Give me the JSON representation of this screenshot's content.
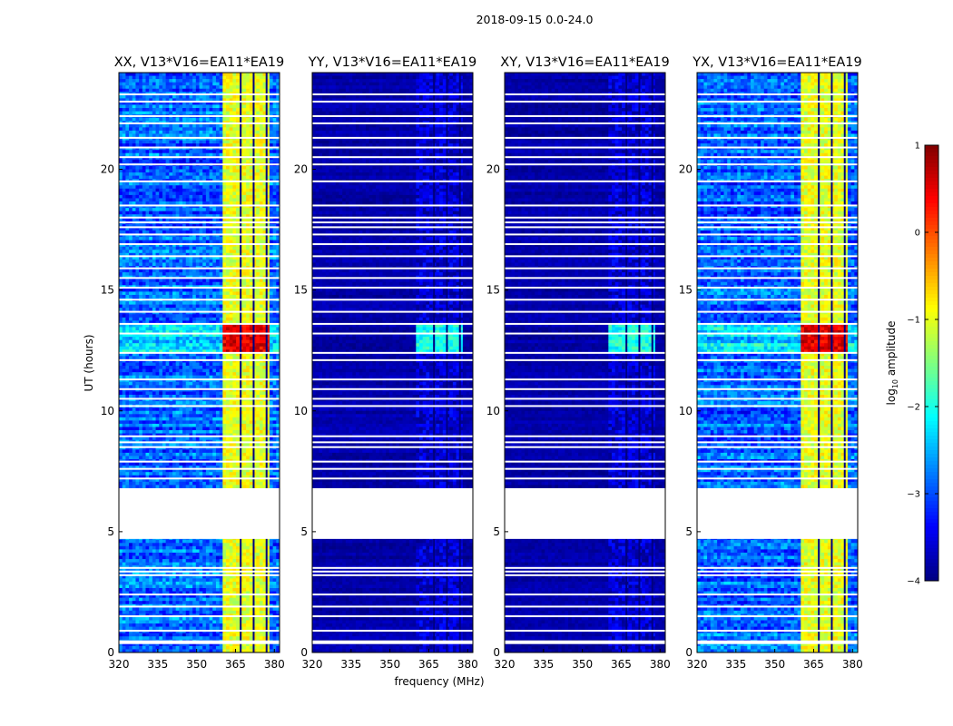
{
  "chart_data": {
    "type": "heatmap",
    "suptitle": "2018-09-15 0.0-24.0",
    "xlabel": "frequency (MHz)",
    "ylabel": "UT (hours)",
    "xlim": [
      320,
      382
    ],
    "ylim": [
      0,
      24
    ],
    "xticks": [
      320,
      335,
      350,
      365,
      380
    ],
    "yticks": [
      0,
      5,
      10,
      15,
      20
    ],
    "colorbar": {
      "label_main": "log",
      "label_sub": "10",
      "label_tail": " amplitude",
      "range": [
        -4,
        1
      ],
      "ticks": [
        1,
        0,
        -1,
        -2,
        -3,
        -4
      ],
      "tick_labels": [
        "1",
        "0",
        "−1",
        "−2",
        "−3",
        "−4"
      ],
      "colormap": "jet"
    },
    "panels": [
      {
        "title": "XX, V13*V16=EA11*EA19",
        "background_level": -2.9,
        "band_level": -1.0,
        "band_freq": [
          359.5,
          378.5
        ],
        "burst_level": 0.5
      },
      {
        "title": "YY, V13*V16=EA11*EA19",
        "background_level": -3.8,
        "band_level": -3.6,
        "band_freq": [
          359.5,
          378.5
        ],
        "burst_level": -2.0
      },
      {
        "title": "XY, V13*V16=EA11*EA19",
        "background_level": -3.8,
        "band_level": -3.6,
        "band_freq": [
          359.5,
          378.5
        ],
        "burst_level": -2.0
      },
      {
        "title": "YX, V13*V16=EA11*EA19",
        "background_level": -2.9,
        "band_level": -1.0,
        "band_freq": [
          359.5,
          378.5
        ],
        "burst_level": 0.5
      }
    ],
    "gaps_hours": [
      [
        4.7,
        6.8
      ],
      [
        0.35,
        0.5
      ]
    ],
    "flagged_rows_hours": [
      0.9,
      1.5,
      1.9,
      2.4,
      3.2,
      3.35,
      3.5,
      7.2,
      7.6,
      7.9,
      8.5,
      8.7,
      8.95,
      10.2,
      10.5,
      10.9,
      11.3,
      12.1,
      12.4,
      13.2,
      13.6,
      14.1,
      14.6,
      15.1,
      15.5,
      15.9,
      16.4,
      16.9,
      17.3,
      17.6,
      17.8,
      18.0,
      18.5,
      19.5,
      20.2,
      20.5,
      20.9,
      21.3,
      21.9,
      22.2,
      22.8,
      23.1
    ],
    "burst_hours": [
      12.4,
      13.6
    ]
  }
}
